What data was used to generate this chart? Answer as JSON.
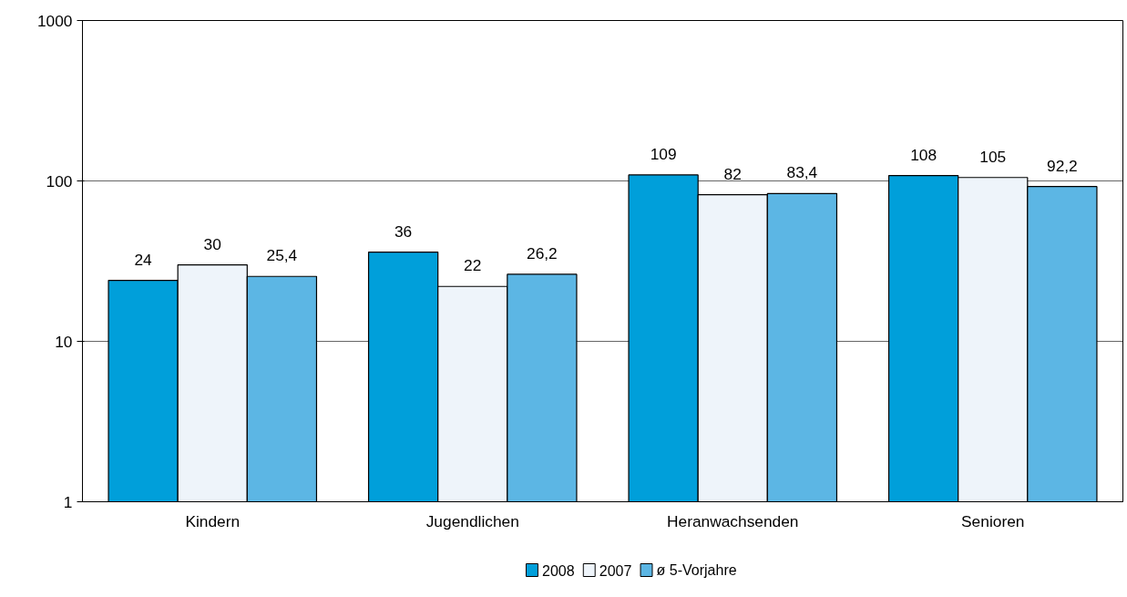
{
  "chart_data": {
    "type": "bar",
    "categories": [
      "Kindern",
      "Jugendlichen",
      "Heranwachsenden",
      "Senioren"
    ],
    "series": [
      {
        "name": "2008",
        "color": "#009fda",
        "values": [
          24,
          36,
          109,
          108
        ],
        "value_labels": [
          "24",
          "36",
          "109",
          "108"
        ]
      },
      {
        "name": "2007",
        "color": "#eef4fa",
        "values": [
          30,
          22,
          82,
          105
        ],
        "value_labels": [
          "30",
          "22",
          "82",
          "105"
        ]
      },
      {
        "name": "ø 5-Vorjahre",
        "color": "#5cb6e4",
        "values": [
          25.4,
          26.2,
          83.4,
          92.2
        ],
        "value_labels": [
          "25,4",
          "26,2",
          "83,4",
          "92,2"
        ]
      }
    ],
    "log": true,
    "ylim": [
      1,
      1000
    ],
    "yticks": [
      1,
      10,
      100,
      1000
    ],
    "grid": "y",
    "legend": "bottom"
  }
}
